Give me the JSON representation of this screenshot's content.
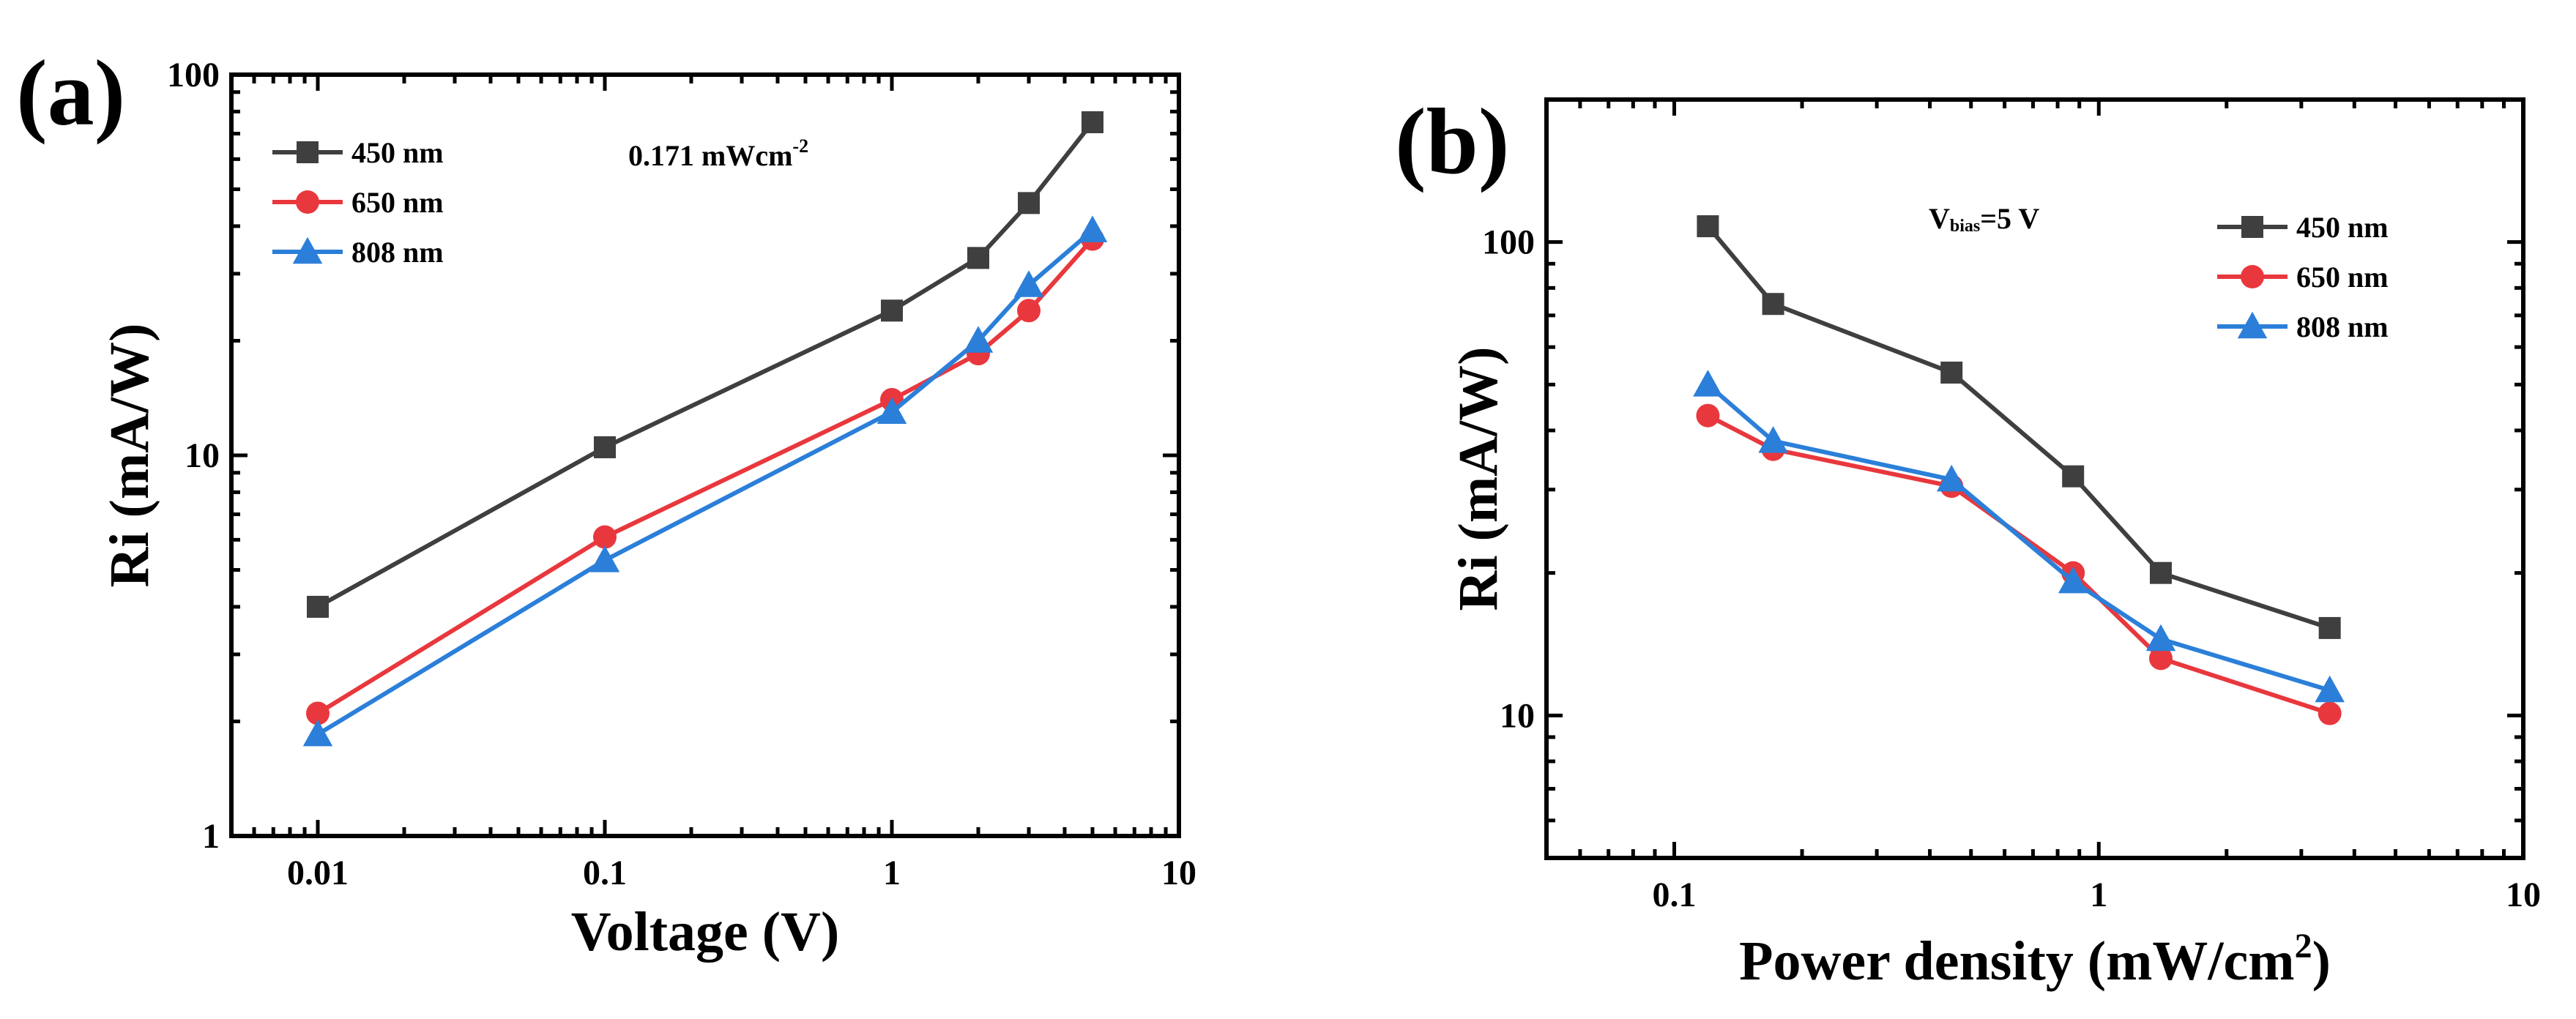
{
  "chart_data": [
    {
      "type": "line",
      "panel_label": "(a)",
      "xlabel": "Voltage (V)",
      "ylabel": "Ri (mA/W)",
      "xscale": "log",
      "yscale": "log",
      "xlim": [
        0.005,
        10
      ],
      "ylim": [
        1,
        100
      ],
      "xticks": [
        {
          "v": 0.01,
          "label": "0.01"
        },
        {
          "v": 0.1,
          "label": "0.1"
        },
        {
          "v": 1,
          "label": "1"
        },
        {
          "v": 10,
          "label": "10"
        }
      ],
      "yticks": [
        {
          "v": 1,
          "label": "1"
        },
        {
          "v": 10,
          "label": "10"
        },
        {
          "v": 100,
          "label": "100"
        }
      ],
      "annotation": {
        "main": "0.171 mWcm",
        "sup": "-2"
      },
      "legend_position": "top-left",
      "x": [
        0.01,
        0.1,
        1,
        2,
        3,
        5
      ],
      "series": [
        {
          "name": "450 nm",
          "color": "#3f3f3f",
          "marker": "square",
          "values": [
            4.0,
            10.5,
            24.0,
            33.0,
            46.0,
            75.0
          ]
        },
        {
          "name": "650 nm",
          "color": "#e8383d",
          "marker": "circle",
          "values": [
            2.1,
            6.1,
            14.0,
            18.5,
            24.0,
            37.0
          ]
        },
        {
          "name": "808 nm",
          "color": "#2b7fd9",
          "marker": "triangle",
          "values": [
            1.85,
            5.3,
            13.0,
            20.0,
            28.0,
            39.0
          ]
        }
      ]
    },
    {
      "type": "line",
      "panel_label": "(b)",
      "xlabel": "Power density (mW/cm",
      "xlabel_sup": "2",
      "xlabel_tail": ")",
      "ylabel": "Ri (mA/W)",
      "xscale": "log",
      "yscale": "log",
      "xlim": [
        0.05,
        10
      ],
      "ylim": [
        5,
        200
      ],
      "xticks": [
        {
          "v": 0.1,
          "label": "0.1"
        },
        {
          "v": 1,
          "label": "1"
        },
        {
          "v": 10,
          "label": "10"
        }
      ],
      "yticks": [
        {
          "v": 10,
          "label": "10"
        },
        {
          "v": 100,
          "label": "100"
        }
      ],
      "annotation": {
        "main": "V",
        "sub": "bias",
        "tail": "=5 V"
      },
      "legend_position": "top-right",
      "x": [
        0.12,
        0.171,
        0.45,
        0.87,
        1.4,
        3.5
      ],
      "series": [
        {
          "name": "450 nm",
          "color": "#3f3f3f",
          "marker": "square",
          "values": [
            108,
            74,
            53,
            32,
            20,
            15.3
          ]
        },
        {
          "name": "650 nm",
          "color": "#e8383d",
          "marker": "circle",
          "values": [
            43,
            36.5,
            30.5,
            20,
            13.2,
            10.1
          ]
        },
        {
          "name": "808 nm",
          "color": "#2b7fd9",
          "marker": "triangle",
          "values": [
            50,
            38,
            31.5,
            19.2,
            14.5,
            11.3
          ]
        }
      ]
    }
  ]
}
